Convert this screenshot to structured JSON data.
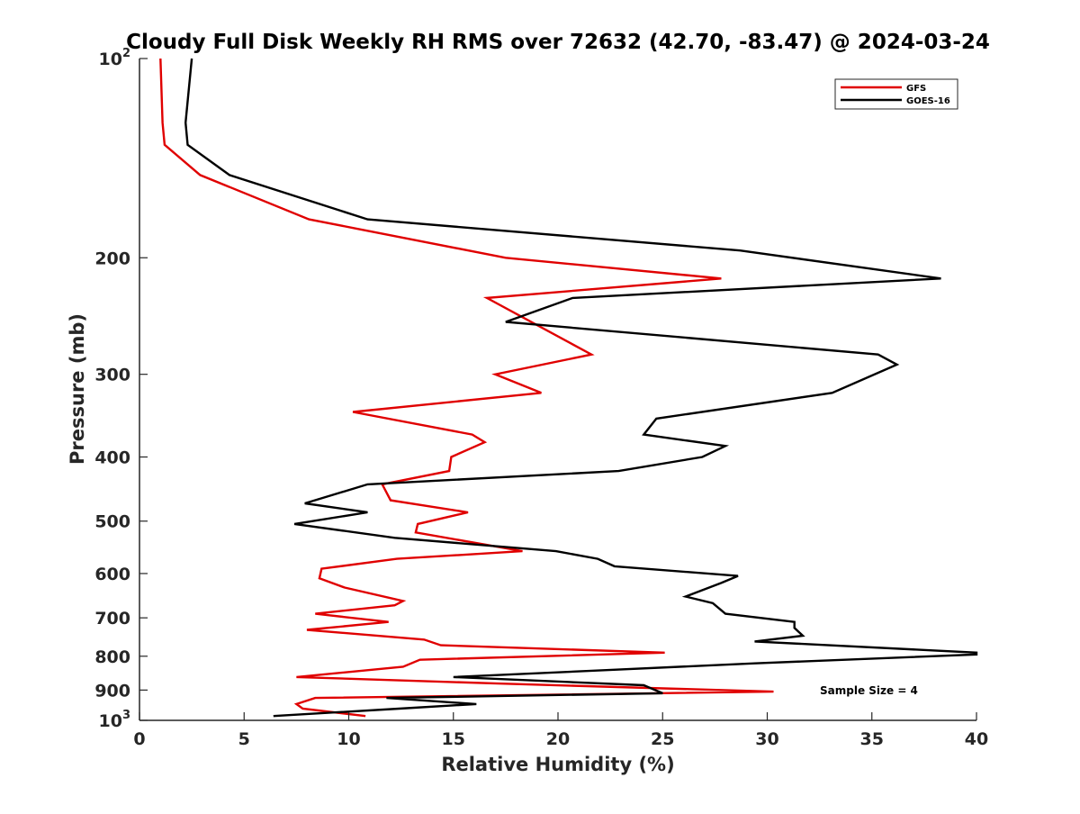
{
  "chart_data": {
    "type": "line",
    "title": "Cloudy Full Disk Weekly RH RMS over 72632 (42.70, -83.47) @ 2024-03-24",
    "xlabel": "Relative Humidity (%)",
    "ylabel": "Pressure (mb)",
    "xlim": [
      0,
      40
    ],
    "ylim": [
      100,
      1000
    ],
    "y_scale": "log",
    "y_reversed": true,
    "x_ticks": [
      "0",
      "5",
      "10",
      "15",
      "20",
      "25",
      "30",
      "35",
      "40"
    ],
    "y_ticks": [
      {
        "value": 100,
        "base": "10",
        "exp": "2"
      },
      {
        "value": 200,
        "label": "200"
      },
      {
        "value": 300,
        "label": "300"
      },
      {
        "value": 400,
        "label": "400"
      },
      {
        "value": 500,
        "label": "500"
      },
      {
        "value": 600,
        "label": "600"
      },
      {
        "value": 700,
        "label": "700"
      },
      {
        "value": 800,
        "label": "800"
      },
      {
        "value": 900,
        "label": "900"
      },
      {
        "value": 1000,
        "base": "10",
        "exp": "3"
      }
    ],
    "legend_position": "top-right",
    "grid": false,
    "annotation": "Sample Size = 4",
    "series": [
      {
        "name": "GFS",
        "color": "#e00000",
        "points": [
          [
            1.0,
            100
          ],
          [
            1.1,
            125
          ],
          [
            1.2,
            135
          ],
          [
            2.9,
            150
          ],
          [
            8.1,
            175
          ],
          [
            17.5,
            200
          ],
          [
            27.8,
            215
          ],
          [
            16.6,
            230
          ],
          [
            21.6,
            280
          ],
          [
            17.0,
            300
          ],
          [
            19.2,
            320
          ],
          [
            10.2,
            342
          ],
          [
            15.9,
            370
          ],
          [
            16.5,
            380
          ],
          [
            14.9,
            400
          ],
          [
            14.8,
            420
          ],
          [
            11.6,
            440
          ],
          [
            12.0,
            465
          ],
          [
            15.7,
            485
          ],
          [
            13.3,
            505
          ],
          [
            13.2,
            520
          ],
          [
            18.3,
            555
          ],
          [
            12.3,
            570
          ],
          [
            8.7,
            590
          ],
          [
            8.6,
            610
          ],
          [
            9.8,
            630
          ],
          [
            12.6,
            660
          ],
          [
            12.2,
            670
          ],
          [
            8.4,
            690
          ],
          [
            11.9,
            710
          ],
          [
            8.0,
            730
          ],
          [
            13.6,
            755
          ],
          [
            14.4,
            770
          ],
          [
            25.1,
            790
          ],
          [
            13.4,
            810
          ],
          [
            12.6,
            830
          ],
          [
            7.5,
            860
          ],
          [
            17.3,
            880
          ],
          [
            30.3,
            905
          ],
          [
            8.4,
            925
          ],
          [
            7.5,
            945
          ],
          [
            7.8,
            960
          ],
          [
            10.8,
            985
          ]
        ]
      },
      {
        "name": "GOES-16",
        "color": "#000000",
        "points": [
          [
            2.5,
            100
          ],
          [
            2.2,
            125
          ],
          [
            2.3,
            135
          ],
          [
            4.3,
            150
          ],
          [
            10.9,
            175
          ],
          [
            28.7,
            195
          ],
          [
            38.3,
            215
          ],
          [
            20.7,
            230
          ],
          [
            17.5,
            250
          ],
          [
            35.3,
            280
          ],
          [
            36.2,
            290
          ],
          [
            33.1,
            320
          ],
          [
            24.7,
            350
          ],
          [
            24.1,
            370
          ],
          [
            28.0,
            385
          ],
          [
            26.9,
            400
          ],
          [
            22.9,
            420
          ],
          [
            10.9,
            440
          ],
          [
            7.9,
            470
          ],
          [
            10.9,
            485
          ],
          [
            7.4,
            505
          ],
          [
            12.2,
            530
          ],
          [
            19.9,
            555
          ],
          [
            21.9,
            570
          ],
          [
            22.7,
            585
          ],
          [
            28.6,
            605
          ],
          [
            27.8,
            620
          ],
          [
            26.1,
            650
          ],
          [
            27.4,
            665
          ],
          [
            28.0,
            690
          ],
          [
            31.3,
            710
          ],
          [
            31.3,
            725
          ],
          [
            31.7,
            745
          ],
          [
            29.4,
            760
          ],
          [
            40.0,
            790
          ],
          [
            40.0,
            795
          ],
          [
            29.4,
            820
          ],
          [
            22.2,
            840
          ],
          [
            15.0,
            860
          ],
          [
            24.1,
            885
          ],
          [
            25.0,
            910
          ],
          [
            11.8,
            925
          ],
          [
            16.1,
            945
          ],
          [
            12.4,
            960
          ],
          [
            6.4,
            985
          ]
        ]
      }
    ]
  }
}
